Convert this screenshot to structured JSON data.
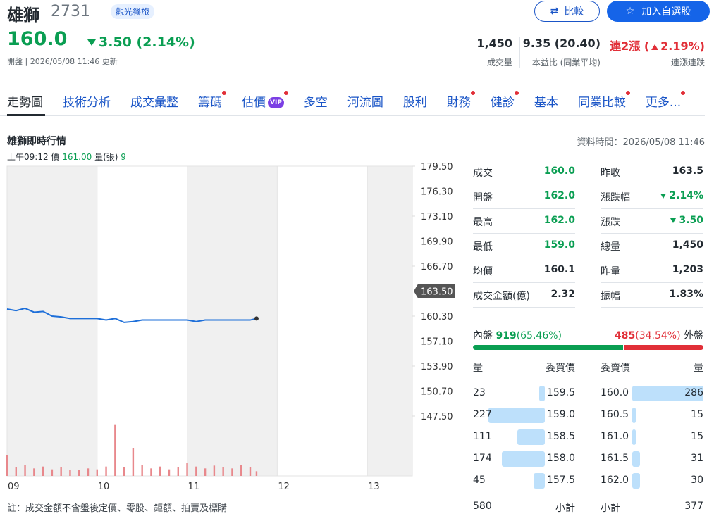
{
  "header": {
    "name": "雄獅",
    "code": "2731",
    "industry": "觀光餐旅",
    "compare_button": "比較",
    "watchlist_button": "加入自選股"
  },
  "quote": {
    "price": "160.0",
    "change": "3.50 (2.14%)",
    "direction": "down",
    "status": "開盤 | 2026/05/08 11:46 更新"
  },
  "stats": [
    {
      "value": "1,450",
      "label": "成交量"
    },
    {
      "value": "9.35 (20.40)",
      "label": "本益比 (同業平均)"
    },
    {
      "prefix": "連2漲 (",
      "value": "2.19%)",
      "direction": "up",
      "label": "連漲連跌"
    }
  ],
  "tabs": [
    {
      "label": "走勢圖",
      "active": true
    },
    {
      "label": "技術分析"
    },
    {
      "label": "成交彙整"
    },
    {
      "label": "籌碼",
      "dot": true
    },
    {
      "label": "估價",
      "badge": "VIP",
      "dot": true
    },
    {
      "label": "多空"
    },
    {
      "label": "河流圖"
    },
    {
      "label": "股利"
    },
    {
      "label": "財務",
      "dot": true
    },
    {
      "label": "健診",
      "dot": true
    },
    {
      "label": "基本"
    },
    {
      "label": "同業比較",
      "dot": true
    },
    {
      "label": "更多...",
      "dot": true
    }
  ],
  "section": {
    "title": "雄獅即時行情",
    "data_time": "資料時間：2026/05/08 11:46",
    "hover": {
      "time": "上午09:12",
      "price_label": "價",
      "price": "161.00",
      "volume_label": "量(張)",
      "volume": "9"
    }
  },
  "chart_data": {
    "type": "line",
    "x": [
      9,
      9.1,
      9.2,
      9.3,
      9.4,
      9.5,
      9.6,
      9.7,
      9.8,
      9.9,
      10,
      10.1,
      10.2,
      10.3,
      10.4,
      10.5,
      10.6,
      10.7,
      10.8,
      10.9,
      11,
      11.1,
      11.2,
      11.3,
      11.4,
      11.5,
      11.6,
      11.7,
      11.77
    ],
    "xlim": [
      9,
      13.5
    ],
    "xticks": [
      {
        "value": 9,
        "label": "09"
      },
      {
        "value": 10,
        "label": "10"
      },
      {
        "value": 11,
        "label": "11"
      },
      {
        "value": 12,
        "label": "12"
      },
      {
        "value": 13,
        "label": "13"
      }
    ],
    "ylim": [
      147.5,
      179.5
    ],
    "yticks": [
      {
        "value": 147.5,
        "label": "147.50"
      },
      {
        "value": 150.7,
        "label": "150.70"
      },
      {
        "value": 153.9,
        "label": "153.90"
      },
      {
        "value": 157.1,
        "label": "157.10"
      },
      {
        "value": 160.3,
        "label": "160.30"
      },
      {
        "value": 163.5,
        "label": "163.50",
        "highlight": true
      },
      {
        "value": 166.7,
        "label": "166.70"
      },
      {
        "value": 169.9,
        "label": "169.90"
      },
      {
        "value": 173.1,
        "label": "173.10"
      },
      {
        "value": 176.3,
        "label": "176.30"
      },
      {
        "value": 179.5,
        "label": "179.50"
      }
    ],
    "y2lim": [
      0,
      60
    ],
    "series": [
      {
        "color": "#1e6fd9",
        "values": [
          161.2,
          161.0,
          161.3,
          160.8,
          160.9,
          160.3,
          160.2,
          160.0,
          160.0,
          160.0,
          160.0,
          159.8,
          160.0,
          159.5,
          159.6,
          159.8,
          159.8,
          159.8,
          159.8,
          159.8,
          159.8,
          159.6,
          159.8,
          159.8,
          159.8,
          159.8,
          159.8,
          159.8,
          160.0
        ]
      },
      {
        "type": "bar",
        "axis": "y2",
        "color": "#e8888c",
        "values": [
          22,
          9,
          12,
          8,
          10,
          7,
          9,
          6,
          6,
          8,
          7,
          10,
          55,
          9,
          30,
          12,
          8,
          10,
          7,
          9,
          14,
          10,
          8,
          11,
          9,
          8,
          12,
          9,
          5
        ]
      }
    ]
  },
  "details": {
    "rows": [
      [
        {
          "label": "成交",
          "value": "160.0",
          "color": "green"
        },
        {
          "label": "昨收",
          "value": "163.5"
        }
      ],
      [
        {
          "label": "開盤",
          "value": "162.0",
          "color": "green"
        },
        {
          "label": "漲跌幅",
          "value": "2.14%",
          "color": "green",
          "arrow": "down"
        }
      ],
      [
        {
          "label": "最高",
          "value": "162.0",
          "color": "green"
        },
        {
          "label": "漲跌",
          "value": "3.50",
          "color": "green",
          "arrow": "down"
        }
      ],
      [
        {
          "label": "最低",
          "value": "159.0",
          "color": "green"
        },
        {
          "label": "總量",
          "value": "1,450"
        }
      ],
      [
        {
          "label": "均價",
          "value": "160.1"
        },
        {
          "label": "昨量",
          "value": "1,203"
        }
      ],
      [
        {
          "label": "成交金額(億)",
          "value": "2.32"
        },
        {
          "label": "振幅",
          "value": "1.83%"
        }
      ]
    ]
  },
  "flow": {
    "inner_label": "內盤",
    "inner_volume": 919,
    "inner_pct": 65.46,
    "inner_pct_label": "(65.46%)",
    "outer_volume": 485,
    "outer_pct": 34.54,
    "outer_pct_label": "(34.54%)",
    "outer_label": "外盤"
  },
  "order_book": {
    "headers": [
      "量",
      "委買價",
      "委賣價",
      "量"
    ],
    "bids": [
      {
        "volume": 23,
        "price": "159.5"
      },
      {
        "volume": 227,
        "price": "159.0"
      },
      {
        "volume": 111,
        "price": "158.5"
      },
      {
        "volume": 174,
        "price": "158.0"
      },
      {
        "volume": 45,
        "price": "157.5"
      }
    ],
    "asks": [
      {
        "price": "160.0",
        "volume": 286
      },
      {
        "price": "160.5",
        "volume": 15
      },
      {
        "price": "161.0",
        "volume": 15
      },
      {
        "price": "161.5",
        "volume": 31
      },
      {
        "price": "162.0",
        "volume": 30
      }
    ],
    "bid_total": 580,
    "bid_total_label": "小計",
    "ask_total_label": "小計",
    "ask_total": 377
  },
  "footnote": "註：成交金額不含盤後定價、零股、鉅額、拍賣及標購"
}
